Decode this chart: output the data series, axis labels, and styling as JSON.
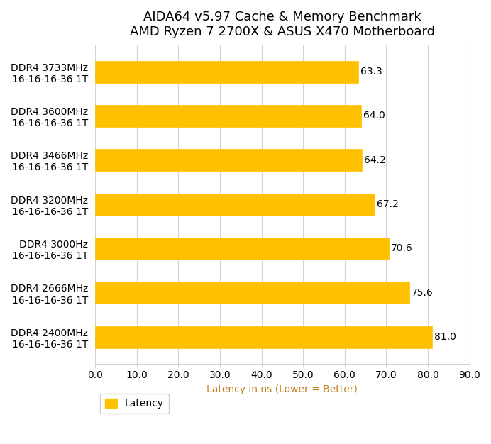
{
  "title_line1": "AIDA64 v5.97 Cache & Memory Benchmark",
  "title_line2": "AMD Ryzen 7 2700X & ASUS X470 Motherboard",
  "categories": [
    "DDR4 3733MHz\n16-16-16-36 1T",
    "DDR4 3600MHz\n16-16-16-36 1T",
    "DDR4 3466MHz\n16-16-16-36 1T",
    "DDR4 3200MHz\n16-16-16-36 1T",
    "DDR4 3000Hz\n16-16-16-36 1T",
    "DDR4 2666MHz\n16-16-16-36 1T",
    "DDR4 2400MHz\n16-16-16-36 1T"
  ],
  "values": [
    63.3,
    64.0,
    64.2,
    67.2,
    70.6,
    75.6,
    81.0
  ],
  "bar_color": "#FFC000",
  "bar_edge_color": "#FFC000",
  "xlabel": "Latency in ns (Lower = Better)",
  "xlim": [
    0,
    90
  ],
  "xticks": [
    0,
    10,
    20,
    30,
    40,
    50,
    60,
    70,
    80,
    90
  ],
  "xtick_labels": [
    "0.0",
    "10.0",
    "20.0",
    "30.0",
    "40.0",
    "50.0",
    "60.0",
    "70.0",
    "80.0",
    "90.0"
  ],
  "legend_label": "Latency",
  "background_color": "#FFFFFF",
  "grid_color": "#D3D3D3",
  "title_fontsize": 13,
  "label_fontsize": 10,
  "tick_fontsize": 10,
  "value_fontsize": 10,
  "bar_height": 0.5
}
